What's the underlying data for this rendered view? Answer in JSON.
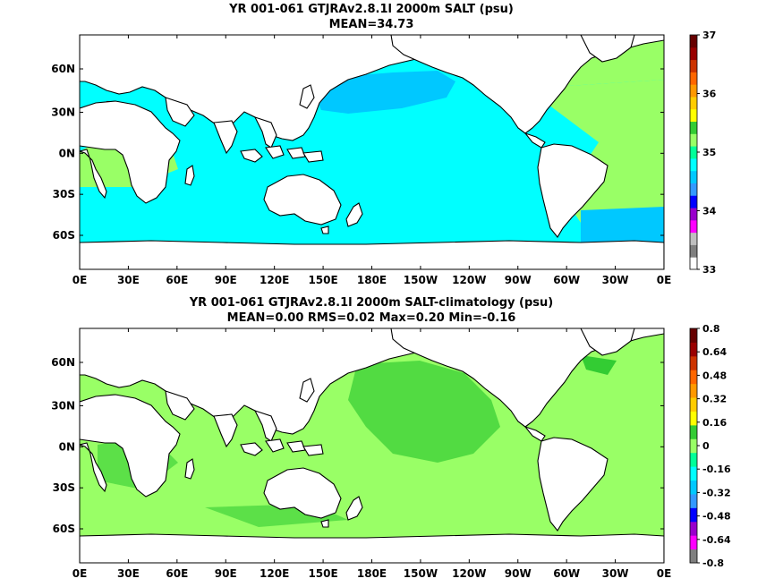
{
  "panels": [
    {
      "title_line1": "YR 001-061 GTJRAv2.8.1l 2000m SALT (psu)",
      "title_line2": "MEAN=34.73",
      "colorbar_labels": [
        "37",
        "36",
        "35",
        "34",
        "33"
      ],
      "colorbar_colors": [
        "#ffffff",
        "#7f7f7f",
        "#bfbfbf",
        "#ff00ff",
        "#9900cc",
        "#0000ff",
        "#3399ff",
        "#00c8ff",
        "#00ffff",
        "#00ff99",
        "#99ff66",
        "#33cc33",
        "#ffff00",
        "#ffcc00",
        "#ff9900",
        "#ff6600",
        "#cc3300",
        "#990000",
        "#660000"
      ],
      "ocean_base": "#00ffff"
    },
    {
      "title_line1": "YR 001-061 GTJRAv2.8.1l 2000m SALT-climatology (psu)",
      "title_line2": "MEAN=0.00   RMS=0.02   Max=0.20   Min=-0.16",
      "colorbar_labels": [
        "0.8",
        "0.64",
        "0.48",
        "0.32",
        "0.16",
        "0",
        "-0.16",
        "-0.32",
        "-0.48",
        "-0.64",
        "-0.8"
      ],
      "colorbar_colors": [
        "#7f7f7f",
        "#ff00ff",
        "#9900cc",
        "#0000ff",
        "#3399ff",
        "#00c8ff",
        "#00ffff",
        "#00ff99",
        "#99ff66",
        "#33cc33",
        "#ffff00",
        "#ffcc00",
        "#ff9900",
        "#ff6600",
        "#cc3300",
        "#990000",
        "#660000"
      ],
      "ocean_base": "#99ff66"
    }
  ],
  "x_ticks": [
    "0E",
    "30E",
    "60E",
    "90E",
    "120E",
    "150E",
    "180E",
    "150W",
    "120W",
    "90W",
    "60W",
    "30W",
    "0E"
  ],
  "y_ticks": [
    "60N",
    "30N",
    "0N",
    "30S",
    "60S"
  ],
  "colors": {
    "land": "#ffffff",
    "coastline": "#000000",
    "salt_atlantic": "#99ff66",
    "salt_pacific_fresh": "#00c8ff",
    "anom_positive": "#33cc33",
    "anom_high": "#ffff00"
  }
}
